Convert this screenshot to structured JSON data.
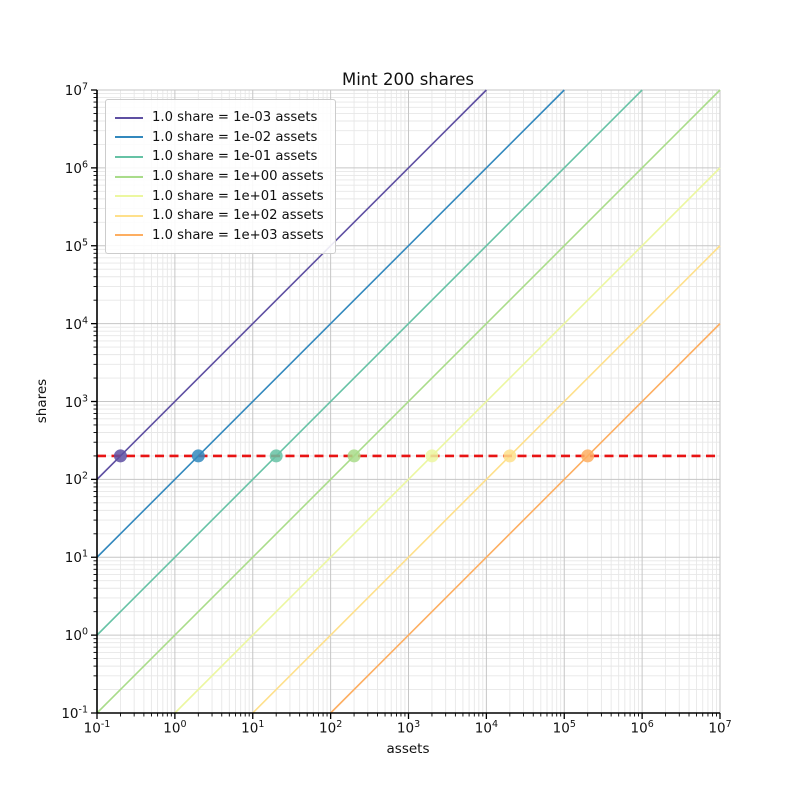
{
  "chart_data": {
    "type": "line",
    "title": "Mint 200 shares",
    "xlabel": "assets",
    "ylabel": "shares",
    "xscale": "log",
    "yscale": "log",
    "xlim": [
      0.1,
      10000000
    ],
    "ylim": [
      0.1,
      10000000
    ],
    "x_tick_exponents": [
      -1,
      0,
      1,
      2,
      3,
      4,
      5,
      6,
      7
    ],
    "y_tick_exponents": [
      -1,
      0,
      1,
      2,
      3,
      4,
      5,
      6,
      7
    ],
    "grid": "both",
    "legend_position": "upper-left",
    "series": [
      {
        "name": "1.0 share = 1e-03 assets",
        "rate_assets_per_share": 0.001,
        "color": "#5e4fa2",
        "marker_point": {
          "assets": 0.2,
          "shares": 200
        }
      },
      {
        "name": "1.0 share = 1e-02 assets",
        "rate_assets_per_share": 0.01,
        "color": "#3288bd",
        "marker_point": {
          "assets": 2,
          "shares": 200
        }
      },
      {
        "name": "1.0 share = 1e-01 assets",
        "rate_assets_per_share": 0.1,
        "color": "#66c2a5",
        "marker_point": {
          "assets": 20,
          "shares": 200
        }
      },
      {
        "name": "1.0 share = 1e+00 assets",
        "rate_assets_per_share": 1,
        "color": "#a9dc8a",
        "marker_point": {
          "assets": 200,
          "shares": 200
        }
      },
      {
        "name": "1.0 share = 1e+01 assets",
        "rate_assets_per_share": 10,
        "color": "#ecf7a0",
        "marker_point": {
          "assets": 2000,
          "shares": 200
        }
      },
      {
        "name": "1.0 share = 1e+02 assets",
        "rate_assets_per_share": 100,
        "color": "#fee08b",
        "marker_point": {
          "assets": 20000,
          "shares": 200
        }
      },
      {
        "name": "1.0 share = 1e+03 assets",
        "rate_assets_per_share": 1000,
        "color": "#fdae61",
        "marker_point": {
          "assets": 200000,
          "shares": 200
        }
      }
    ],
    "target_line": {
      "shares": 200,
      "color": "#e81414",
      "style": "dashed"
    },
    "colors": {
      "grid_major": "#c6c6c6",
      "grid_minor": "#e7e7e7",
      "spine": "#000000",
      "text": "#111111"
    }
  }
}
